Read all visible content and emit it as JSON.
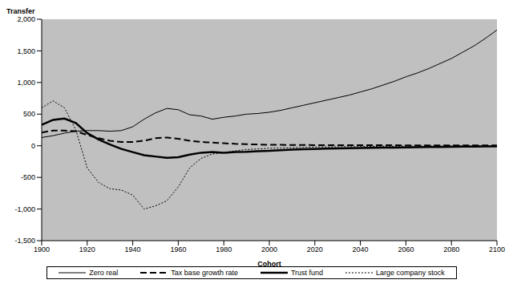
{
  "chart_data": {
    "type": "line",
    "x_label": "Cohort",
    "y_label": "Transfer",
    "x": [
      1900,
      1905,
      1910,
      1915,
      1920,
      1925,
      1930,
      1935,
      1940,
      1945,
      1950,
      1955,
      1960,
      1965,
      1970,
      1975,
      1980,
      1985,
      1990,
      1995,
      2000,
      2005,
      2010,
      2015,
      2020,
      2025,
      2030,
      2035,
      2040,
      2045,
      2050,
      2055,
      2060,
      2065,
      2070,
      2075,
      2080,
      2085,
      2090,
      2095,
      2100
    ],
    "series": [
      {
        "name": "Zero real",
        "color": "#000000",
        "line_style": "solid",
        "values": [
          130,
          160,
          200,
          230,
          240,
          240,
          230,
          240,
          300,
          420,
          520,
          590,
          570,
          490,
          470,
          420,
          450,
          470,
          500,
          510,
          530,
          560,
          600,
          640,
          680,
          720,
          760,
          800,
          850,
          900,
          960,
          1020,
          1090,
          1150,
          1220,
          1300,
          1380,
          1480,
          1580,
          1700,
          1830
        ]
      },
      {
        "name": "Tax base growth rate",
        "color": "#000000",
        "line_style": "dashed",
        "values": [
          210,
          240,
          240,
          230,
          170,
          120,
          80,
          60,
          60,
          80,
          120,
          130,
          110,
          80,
          60,
          50,
          40,
          30,
          25,
          20,
          15,
          15,
          12,
          12,
          10,
          10,
          10,
          10,
          8,
          8,
          8,
          8,
          7,
          7,
          6,
          6,
          6,
          5,
          5,
          5,
          5
        ]
      },
      {
        "name": "Trust fund",
        "color": "#000000",
        "line_style": "solid",
        "values": [
          330,
          410,
          430,
          360,
          200,
          100,
          20,
          -50,
          -100,
          -150,
          -170,
          -190,
          -180,
          -140,
          -110,
          -100,
          -110,
          -100,
          -95,
          -85,
          -80,
          -70,
          -60,
          -55,
          -50,
          -45,
          -42,
          -38,
          -35,
          -32,
          -30,
          -28,
          -25,
          -22,
          -20,
          -18,
          -15,
          -13,
          -12,
          -11,
          -10
        ]
      },
      {
        "name": "Large company stock",
        "color": "#000000",
        "line_style": "dotted",
        "values": [
          600,
          710,
          600,
          250,
          -350,
          -580,
          -680,
          -700,
          -780,
          -1000,
          -950,
          -870,
          -650,
          -350,
          -200,
          -130,
          -110,
          -80,
          -60,
          -50,
          -40,
          -35,
          -30,
          -25,
          -20,
          -18,
          -16,
          -14,
          -12,
          -10,
          -9,
          -8,
          -7,
          -6,
          -5,
          -4,
          -3,
          -2,
          -1,
          -1,
          0
        ]
      }
    ],
    "xlim": [
      1900,
      2100
    ],
    "xticks": [
      1900,
      1920,
      1940,
      1960,
      1980,
      2000,
      2020,
      2040,
      2060,
      2080,
      2100
    ],
    "ylim": [
      -1500,
      2000
    ],
    "yticks": [
      {
        "value": -1500,
        "label": "-1,500"
      },
      {
        "value": -1000,
        "label": "-1,000"
      },
      -500,
      0,
      500,
      {
        "value": 1000,
        "label": "1,000"
      },
      {
        "value": 1500,
        "label": "1,500"
      },
      {
        "value": 2000,
        "label": "2,000"
      }
    ],
    "grid": false,
    "legend": "bottom"
  }
}
